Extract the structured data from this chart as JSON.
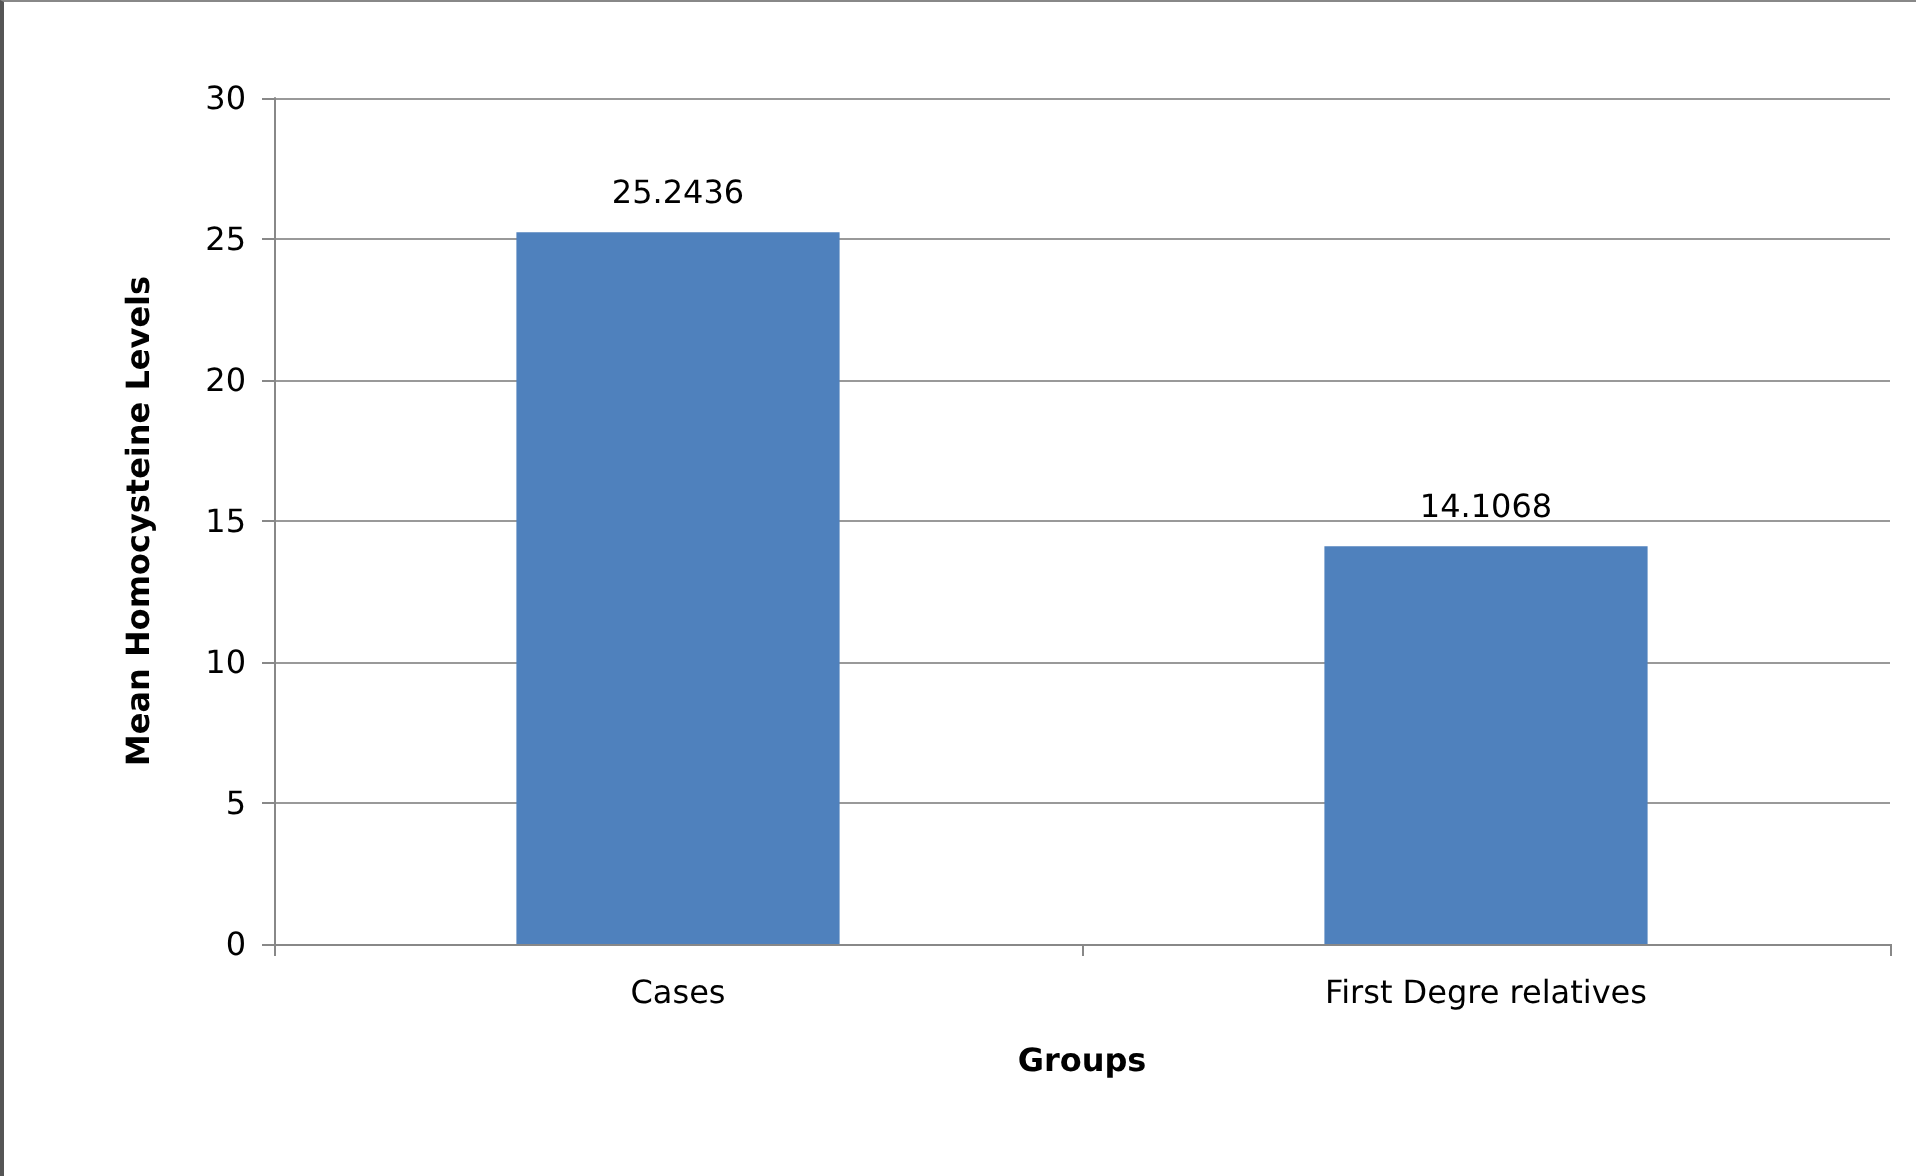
{
  "chart_data": {
    "type": "bar",
    "xlabel": "Groups",
    "ylabel": "Mean Homocysteine Levels",
    "categories": [
      "Cases",
      "First Degre relatives"
    ],
    "values": [
      25.2436,
      14.1068
    ],
    "color": "#4f81bd",
    "ylim": [
      0,
      30
    ],
    "yticks": [
      0,
      5,
      10,
      15,
      20,
      25,
      30
    ],
    "grid": "y",
    "data_labels": true
  }
}
